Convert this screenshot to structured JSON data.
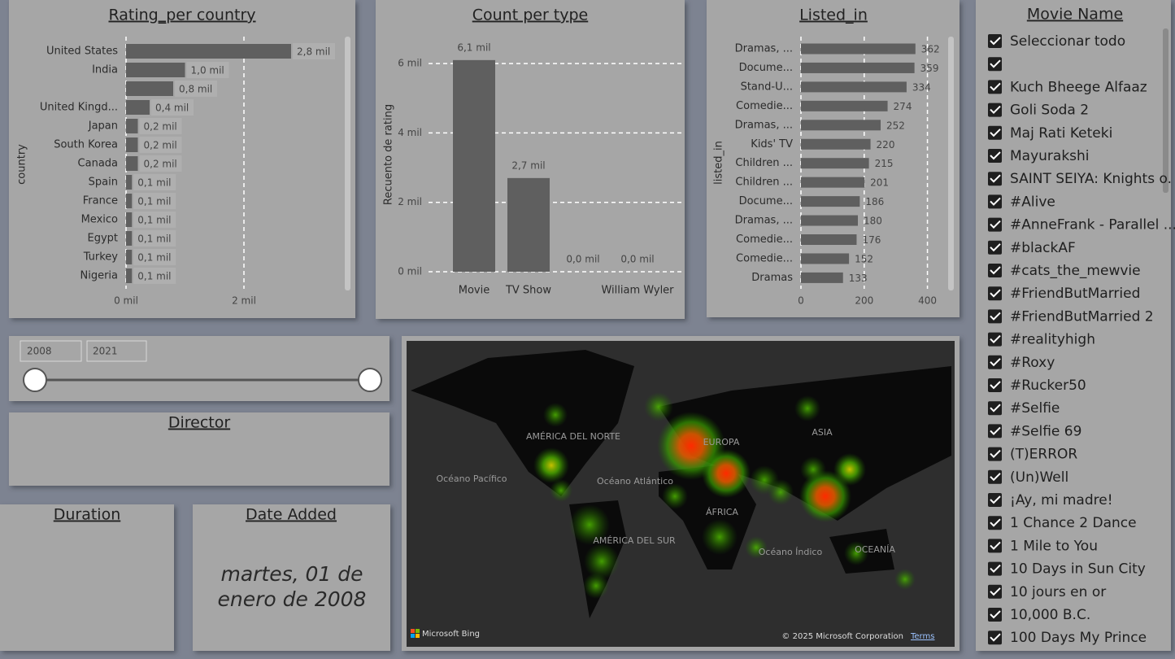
{
  "chart_data": [
    {
      "type": "hbar",
      "title": "Rating_per country",
      "y_label": "country",
      "categories": [
        "United States",
        "India",
        null,
        "United Kingd...",
        "Japan",
        "South Korea",
        "Canada",
        "Spain",
        "France",
        "Mexico",
        "Egypt",
        "Turkey",
        "Nigeria"
      ],
      "values": [
        2.8,
        1.0,
        0.8,
        0.4,
        0.2,
        0.2,
        0.2,
        0.1,
        0.1,
        0.1,
        0.1,
        0.1,
        0.1
      ],
      "value_labels": [
        "2,8 mil",
        "1,0 mil",
        "0,8 mil",
        "0,4 mil",
        "0,2 mil",
        "0,2 mil",
        "0,2 mil",
        "0,1 mil",
        "0,1 mil",
        "0,1 mil",
        "0,1 mil",
        "0,1 mil",
        "0,1 mil"
      ],
      "color": "#5f5f5f",
      "xlim": [
        0,
        3.6
      ],
      "xticks": [
        {
          "value": 0,
          "label": "0 mil"
        },
        {
          "value": 2,
          "label": "2 mil"
        }
      ],
      "grid": true
    },
    {
      "type": "bar",
      "title": "Count per type",
      "y_label": "Recuento de rating",
      "categories": [
        "Movie",
        "TV Show",
        null,
        "William Wyler"
      ],
      "values": [
        6.1,
        2.7,
        0.0,
        0.0
      ],
      "value_labels": [
        "6,1 mil",
        "2,7 mil",
        "0,0 mil",
        "0,0 mil"
      ],
      "color": "#5f5f5f",
      "ylim": [
        0,
        6.8
      ],
      "yticks": [
        {
          "value": 0,
          "label": "0 mil"
        },
        {
          "value": 2,
          "label": "2 mil"
        },
        {
          "value": 4,
          "label": "4 mil"
        },
        {
          "value": 6,
          "label": "6 mil"
        }
      ],
      "grid": true
    },
    {
      "type": "hbar",
      "title": "Listed_in",
      "y_label": "listed_in",
      "categories": [
        "Dramas, ...",
        "Docume...",
        "Stand-U...",
        "Comedie...",
        "Dramas, ...",
        "Kids' TV",
        "Children ...",
        "Children ...",
        "Docume...",
        "Dramas, ...",
        "Comedie...",
        "Comedie...",
        "Dramas"
      ],
      "values": [
        362,
        359,
        334,
        274,
        252,
        220,
        215,
        201,
        186,
        180,
        176,
        152,
        133
      ],
      "color": "#5f5f5f",
      "xlim": [
        0,
        450
      ],
      "xticks": [
        0,
        200,
        400
      ],
      "grid": true
    }
  ],
  "year_slicer": {
    "start": "2008",
    "end": "2021"
  },
  "director": {
    "title": "Director"
  },
  "duration": {
    "title": "Duration"
  },
  "date_added": {
    "title": "Date Added",
    "value": "martes, 01 de enero de 2008"
  },
  "map": {
    "labels": [
      "AMÉRICA DEL NORTE",
      "Océano Pacífico",
      "Océano Atlántico",
      "EUROPA",
      "ASIA",
      "ÁFRICA",
      "AMÉRICA DEL SUR",
      "Océano Índico",
      "OCEANÍA"
    ],
    "logo": "Microsoft Bing",
    "copyright": "© 2025 Microsoft Corporation",
    "terms": "Terms"
  },
  "movie_list": {
    "title": "Movie Name",
    "items": [
      "Seleccionar todo",
      null,
      "Kuch Bheege Alfaaz",
      "Goli Soda 2",
      "Maj Rati Keteki",
      "Mayurakshi",
      "SAINT SEIYA: Knights o.",
      "#Alive",
      "#AnneFrank - Parallel ...",
      "#blackAF",
      "#cats_the_mewvie",
      "#FriendButMarried",
      "#FriendButMarried 2",
      "#realityhigh",
      "#Roxy",
      "#Rucker50",
      "#Selfie",
      "#Selfie 69",
      "(T)ERROR",
      "(Un)Well",
      "¡Ay, mi madre!",
      "1 Chance 2 Dance",
      "1 Mile to You",
      "10 Days in Sun City",
      "10 jours en or",
      "10,000 B.C.",
      "100 Days My Prince"
    ]
  }
}
